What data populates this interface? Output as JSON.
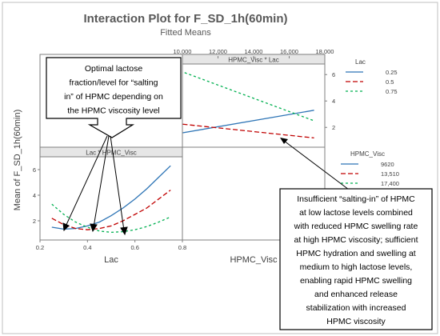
{
  "title": "Interaction Plot for F_SD_1h(60min)",
  "subtitle": "Fitted Means",
  "y_axis_label": "Mean of F_SD_1h(60min)",
  "callout_left": [
    "Optimal lactose",
    "fraction/level for “salting",
    "in” of HPMC depending on",
    "the HPMC viscosity level"
  ],
  "callout_right": [
    "Insufficient “salting-in” of HPMC",
    "at low lactose levels combined",
    "with reduced HPMC swelling rate",
    "at high HPMC viscosity; sufficient",
    "HPMC hydration and swelling at",
    "medium to high lactose levels,",
    "enabling rapid HPMC swelling",
    "and enhanced release",
    "stabilization with increased",
    "HPMC viscosity"
  ],
  "colors": {
    "blue": "#2e75b6",
    "red": "#c00000",
    "green": "#00b050",
    "frame": "#7f7f7f",
    "text": "#595959"
  },
  "chart_data": [
    {
      "type": "line",
      "panel_title": "HPMC_Visc * Lac",
      "x_label": "",
      "x_ticks": [
        "10,000",
        "12,000",
        "14,000",
        "16,000",
        "18,000"
      ],
      "y_ticks": [
        "2",
        "4",
        "6"
      ],
      "xlim": [
        10000,
        18000
      ],
      "ylim": [
        0.5,
        6.8
      ],
      "legend_title": "Lac",
      "legend": [
        "0.25",
        "0.5",
        "0.75"
      ],
      "series": [
        {
          "name": "0.25",
          "x": [
            9620,
            17400
          ],
          "y": [
            1.5,
            3.3
          ]
        },
        {
          "name": "0.5",
          "x": [
            9620,
            17400
          ],
          "y": [
            2.3,
            1.2
          ]
        },
        {
          "name": "0.75",
          "x": [
            9620,
            17400
          ],
          "y": [
            6.4,
            2.5
          ]
        }
      ]
    },
    {
      "type": "line",
      "panel_title": "Lac * HPMC_Visc",
      "x_label": "Lac",
      "x_ticks": [
        "0.2",
        "0.4",
        "0.6",
        "0.8"
      ],
      "y_ticks": [
        "2",
        "4",
        "6"
      ],
      "xlim": [
        0.2,
        0.8
      ],
      "ylim": [
        0.5,
        7.0
      ],
      "legend_title": "HPMC_Visc",
      "legend": [
        "9620",
        "13,510",
        "17,400"
      ],
      "series": [
        {
          "name": "9620",
          "x": [
            0.25,
            0.3,
            0.35,
            0.4,
            0.45,
            0.5,
            0.55,
            0.6,
            0.65,
            0.7,
            0.75
          ],
          "y": [
            1.5,
            1.35,
            1.4,
            1.6,
            1.9,
            2.4,
            3.0,
            3.7,
            4.5,
            5.4,
            6.3
          ]
        },
        {
          "name": "13,510",
          "x": [
            0.25,
            0.3,
            0.35,
            0.4,
            0.45,
            0.5,
            0.55,
            0.6,
            0.65,
            0.7,
            0.75
          ],
          "y": [
            2.2,
            1.7,
            1.4,
            1.3,
            1.4,
            1.6,
            2.0,
            2.5,
            3.0,
            3.7,
            4.4
          ]
        },
        {
          "name": "17,400",
          "x": [
            0.25,
            0.3,
            0.35,
            0.4,
            0.45,
            0.5,
            0.55,
            0.6,
            0.65,
            0.7,
            0.75
          ],
          "y": [
            3.3,
            2.5,
            1.9,
            1.5,
            1.2,
            1.1,
            1.15,
            1.3,
            1.55,
            1.9,
            2.3
          ]
        }
      ]
    }
  ],
  "bottom_labels": {
    "right_panel_x_label": "HPMC_Visc"
  }
}
